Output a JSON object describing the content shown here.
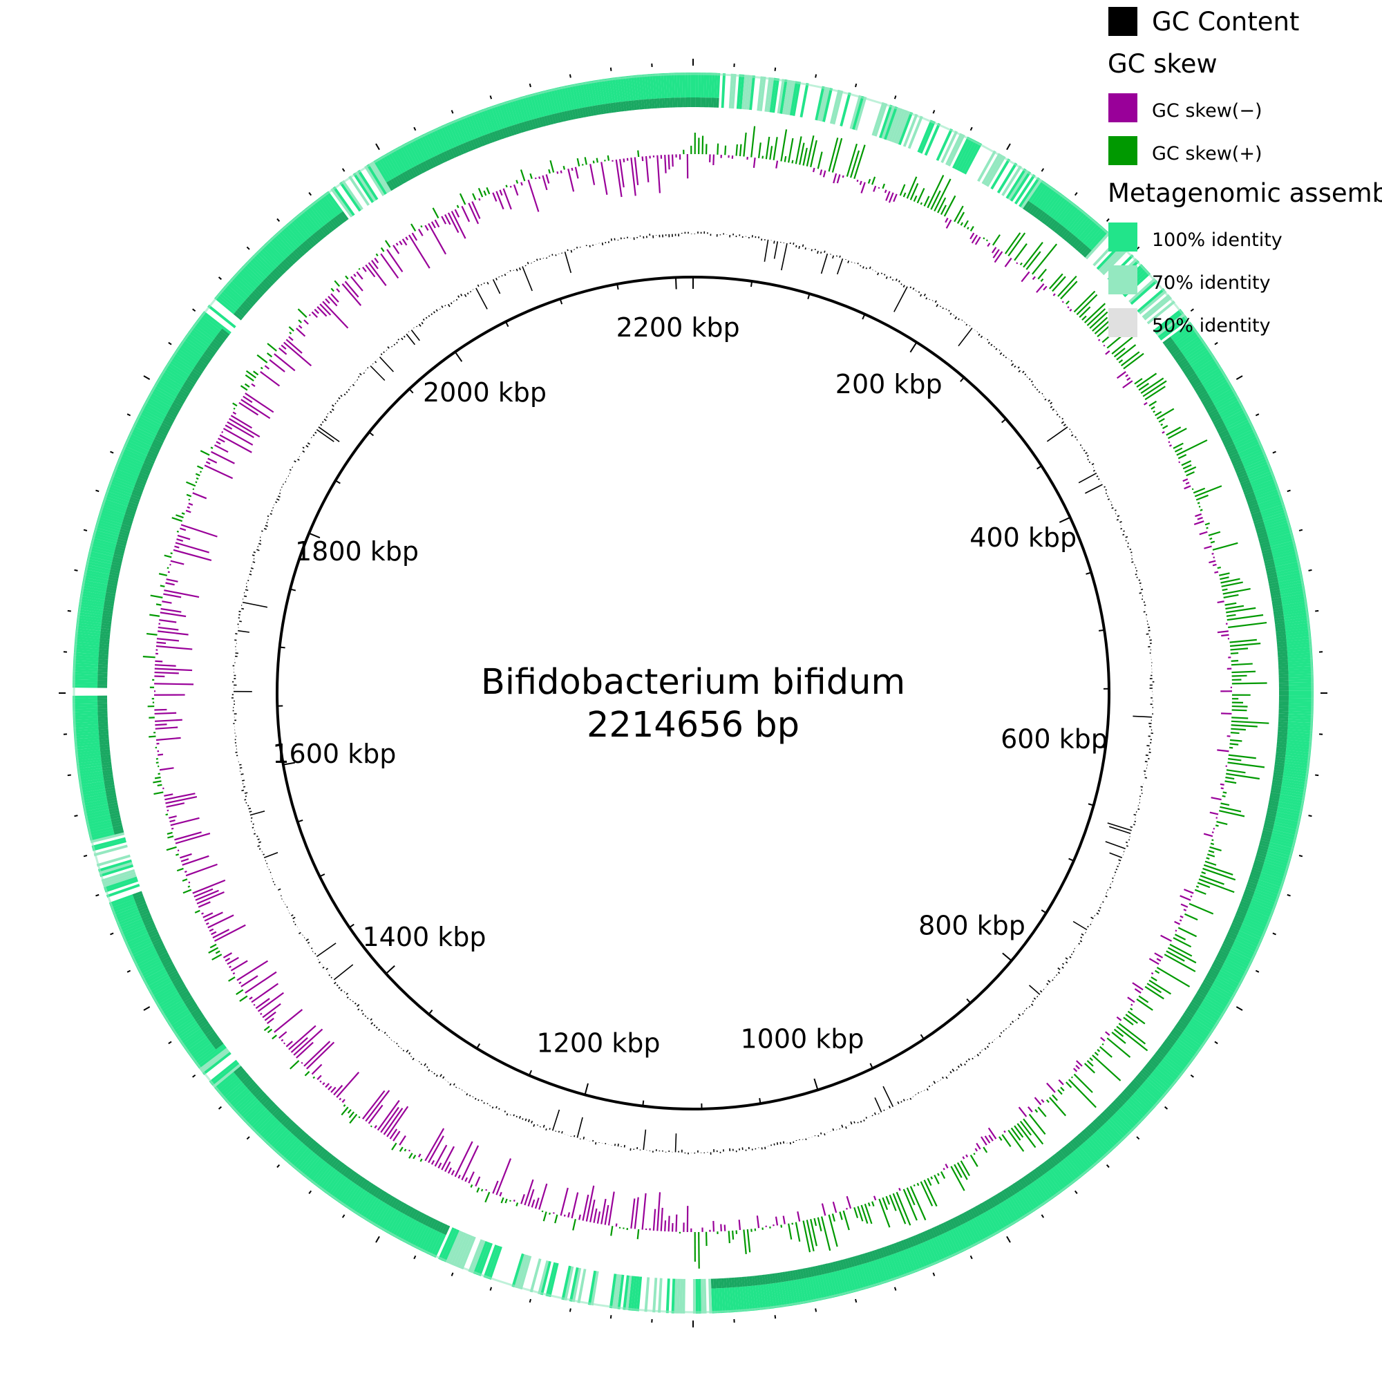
{
  "map": {
    "organism": "Bifidobacterium bifidum",
    "size_label": "2214656 bp",
    "genome_length_bp": 2214656,
    "backbone_color": "#000000"
  },
  "ticks": {
    "labels": [
      {
        "kbp": 200,
        "text": "200 kbp"
      },
      {
        "kbp": 400,
        "text": "400 kbp"
      },
      {
        "kbp": 600,
        "text": "600 kbp"
      },
      {
        "kbp": 800,
        "text": "800 kbp"
      },
      {
        "kbp": 1000,
        "text": "1000 kbp"
      },
      {
        "kbp": 1200,
        "text": "1200 kbp"
      },
      {
        "kbp": 1400,
        "text": "1400 kbp"
      },
      {
        "kbp": 1600,
        "text": "1600 kbp"
      },
      {
        "kbp": 1800,
        "text": "1800 kbp"
      },
      {
        "kbp": 2000,
        "text": "2000 kbp"
      },
      {
        "kbp": 2200,
        "text": "2200 kbp"
      }
    ]
  },
  "legend": {
    "gc_content": {
      "label": "GC Content",
      "color": "#000000"
    },
    "gc_skew": {
      "heading": "GC skew",
      "negative": {
        "label": "GC skew(−)",
        "color": "#990099"
      },
      "positive": {
        "label": "GC skew(+)",
        "color": "#009900"
      }
    },
    "assembly": {
      "heading": "Metagenomic assembly",
      "identity_100": {
        "label": "100% identity",
        "color": "#22e48a"
      },
      "identity_70": {
        "label": "70% identity",
        "color": "#94e8c0"
      },
      "identity_50": {
        "label": "50% identity",
        "color": "#e0e0e0"
      }
    }
  },
  "ring_colors": {
    "assembly_inner_shade": "#1aa862"
  }
}
